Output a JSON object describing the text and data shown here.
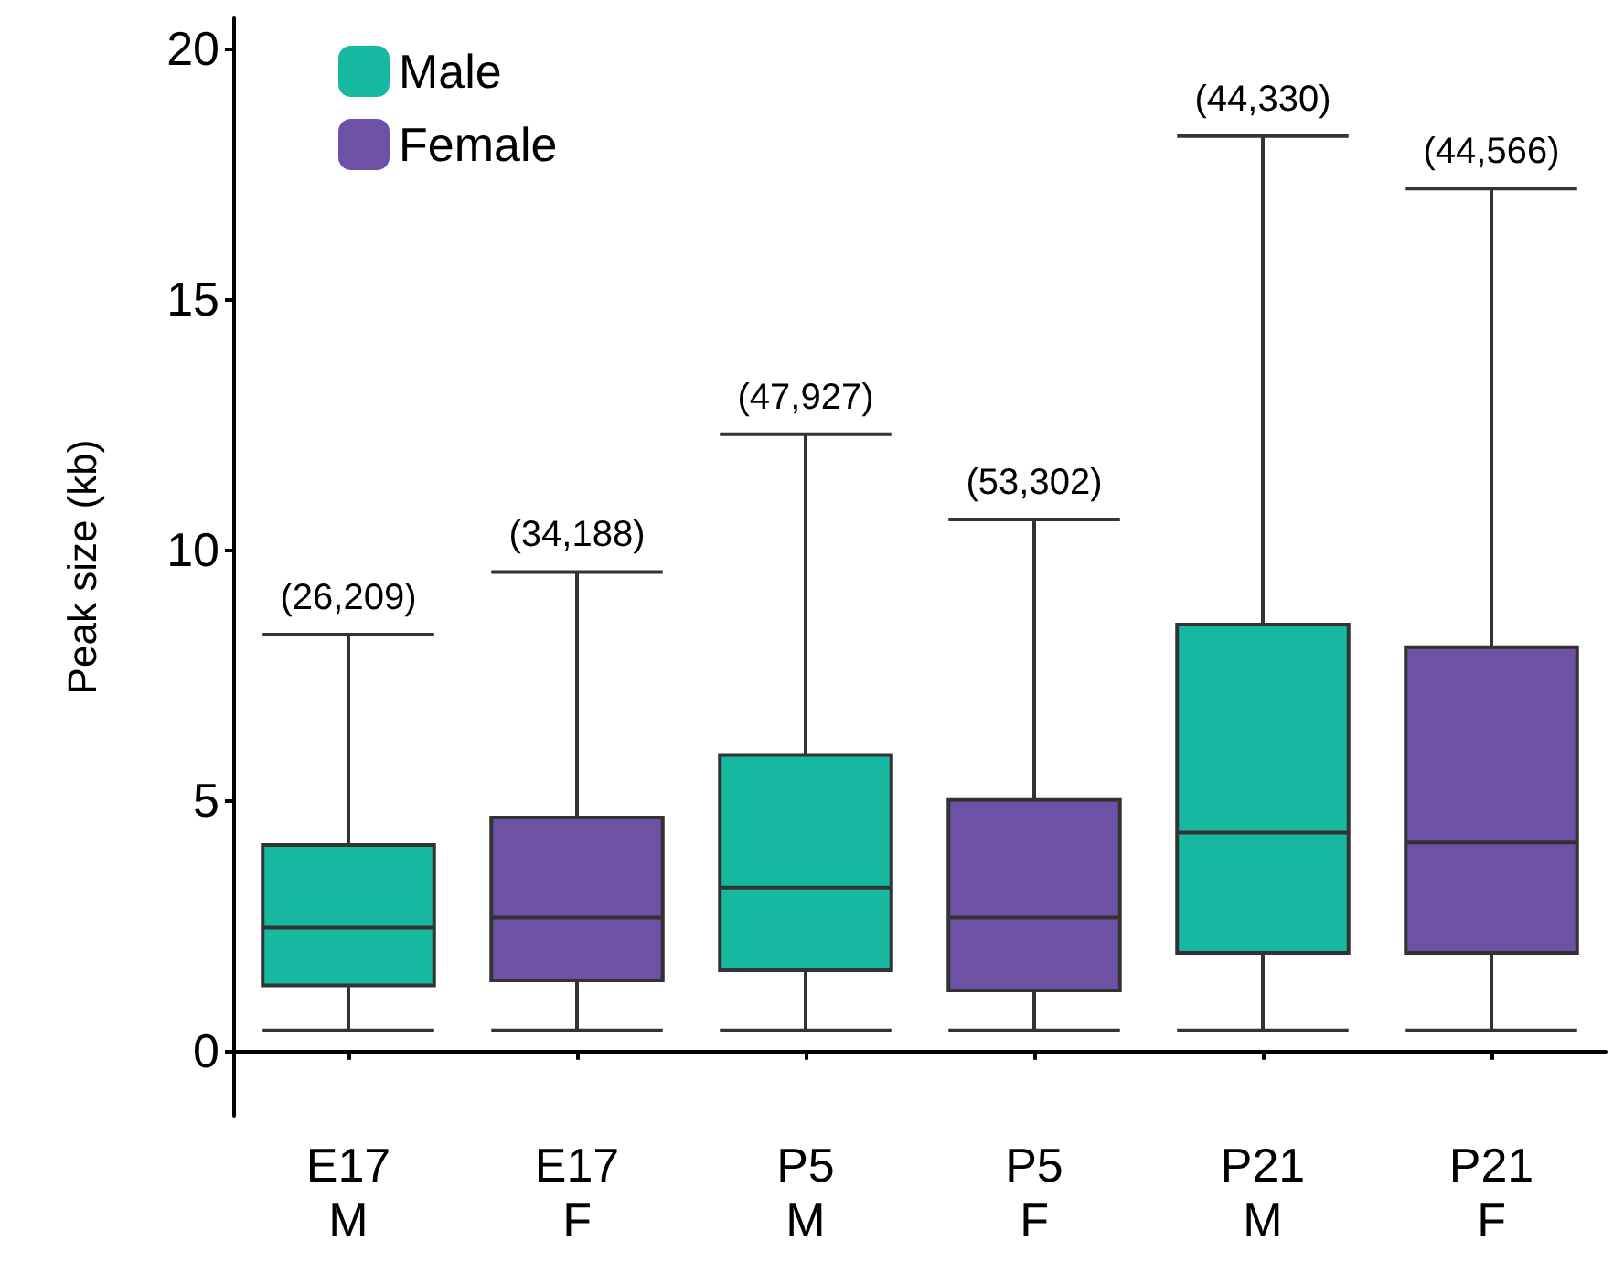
{
  "chart_data": {
    "type": "box",
    "ylabel": "Peak size (kb)",
    "categories": [
      "E17\nM",
      "E17\nF",
      "P5\nM",
      "P5\nF",
      "P21\nM",
      "P21\nF"
    ],
    "series": [
      {
        "name": "Male",
        "color": "#17b8a0",
        "boxes": [
          {
            "low": 0.4,
            "q1": 1.3,
            "median": 2.45,
            "q3": 4.1,
            "high": 8.3
          },
          null,
          {
            "low": 0.4,
            "q1": 1.6,
            "median": 3.25,
            "q3": 5.9,
            "high": 12.3
          },
          null,
          {
            "low": 0.4,
            "q1": 1.95,
            "median": 4.35,
            "q3": 8.5,
            "high": 18.25
          },
          null
        ]
      },
      {
        "name": "Female",
        "color": "#6c51a4",
        "boxes": [
          null,
          {
            "low": 0.4,
            "q1": 1.4,
            "median": 2.65,
            "q3": 4.65,
            "high": 9.55
          },
          null,
          {
            "low": 0.4,
            "q1": 1.2,
            "median": 2.65,
            "q3": 5.0,
            "high": 10.6
          },
          null,
          {
            "low": 0.4,
            "q1": 1.95,
            "median": 4.15,
            "q3": 8.05,
            "high": 17.2
          }
        ]
      }
    ],
    "ylim": [
      -1.3,
      20.6
    ],
    "yticks": [
      0,
      5,
      10,
      15,
      20
    ],
    "grid": false,
    "legend": "top left",
    "annotations": [
      "(26,209)",
      "(34,188)",
      "(47,927)",
      "(53,302)",
      "(44,330)",
      "(44,566)"
    ]
  }
}
